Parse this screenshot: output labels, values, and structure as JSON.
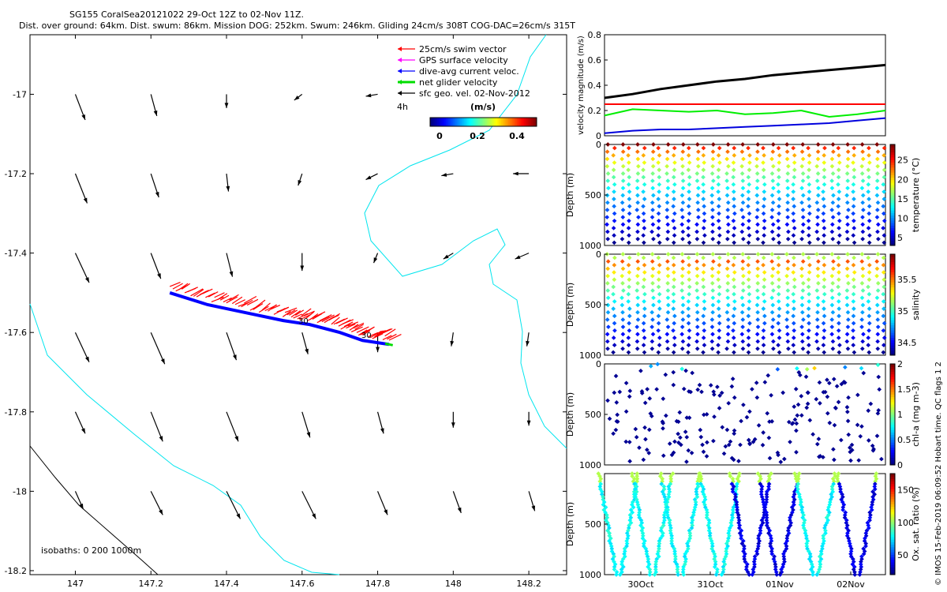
{
  "header": {
    "line1": "SG155 CoralSea20121022 29-Oct 12Z to 02-Nov 11Z.",
    "line2": "Dist. over ground: 64km. Dist. swum: 86km. Mission DOG: 252km. Swum: 246km. Gliding 24cm/s 308T COG-DAC=26cm/s 315T"
  },
  "footer": {
    "credit": "© IMOS 15-Feb-2019 06:09:52 Hobart time. QC flags 1  2"
  },
  "map": {
    "legend": {
      "items": [
        {
          "label": "25cm/s swim vector",
          "color": "#ff0000"
        },
        {
          "label": "GPS surface velocity",
          "color": "#ff00ff"
        },
        {
          "label": "dive-avg current veloc.",
          "color": "#0000ff"
        },
        {
          "label": "net glider velocity",
          "color": "#00dd00"
        },
        {
          "label": "sfc geo. vel. 02-Nov-2012",
          "color": "#000000"
        }
      ],
      "interval_label": "4h",
      "unit_label": "(m/s)",
      "colorbar_ticks": [
        "0",
        "0.2",
        "0.4"
      ]
    },
    "isobaths_label": "isobaths: 0   200  1000m",
    "track_labels": [
      "30",
      "30"
    ],
    "coast_color": "#00e5ee"
  },
  "chart_data": [
    {
      "type": "scatter",
      "name": "map",
      "xlabel": "",
      "ylabel": "",
      "x_ticks": [
        "147",
        "147.2",
        "147.4",
        "147.6",
        "147.8",
        "148",
        "148.2"
      ],
      "y_ticks": [
        "-17",
        "-17.2",
        "-17.4",
        "-17.6",
        "-17.8",
        "-18",
        "-18.2"
      ],
      "xlim": [
        146.88,
        148.3
      ],
      "ylim": [
        -18.21,
        -16.85
      ],
      "track": {
        "lon": [
          147.25,
          147.35,
          147.45,
          147.55,
          147.62,
          147.7,
          147.76,
          147.83
        ],
        "lat": [
          -17.5,
          -17.53,
          -17.55,
          -17.57,
          -17.58,
          -17.6,
          -17.62,
          -17.63
        ]
      },
      "current_grid": {
        "lon": [
          147.0,
          147.2,
          147.4,
          147.6,
          147.8,
          148.0,
          148.2
        ],
        "lat": [
          -17.0,
          -17.2,
          -17.4,
          -17.6,
          -17.8,
          -18.0
        ],
        "u": [
          [
            0.05,
            0.03,
            0.0,
            -0.04,
            -0.06,
            0,
            0
          ],
          [
            0.06,
            0.04,
            0.01,
            -0.02,
            -0.06,
            -0.06,
            -0.08
          ],
          [
            0.07,
            0.05,
            0.03,
            0.0,
            -0.02,
            -0.05,
            -0.07
          ],
          [
            0.07,
            0.07,
            0.05,
            0.03,
            0.0,
            -0.01,
            -0.01
          ],
          [
            0.05,
            0.06,
            0.06,
            0.04,
            0.03,
            0.0,
            0.0
          ],
          [
            0.04,
            0.06,
            0.07,
            0.07,
            0.05,
            0.04,
            0.03
          ]
        ],
        "v": [
          [
            -0.13,
            -0.11,
            -0.07,
            -0.03,
            -0.01,
            0,
            0
          ],
          [
            -0.15,
            -0.12,
            -0.09,
            -0.06,
            -0.03,
            -0.01,
            0.0
          ],
          [
            -0.15,
            -0.13,
            -0.12,
            -0.09,
            -0.05,
            -0.03,
            -0.03
          ],
          [
            -0.15,
            -0.16,
            -0.14,
            -0.11,
            -0.1,
            -0.07,
            -0.07
          ],
          [
            -0.11,
            -0.15,
            -0.15,
            -0.13,
            -0.11,
            -0.08,
            -0.07
          ],
          [
            -0.09,
            -0.12,
            -0.14,
            -0.14,
            -0.12,
            -0.11,
            -0.1
          ]
        ]
      }
    },
    {
      "type": "line",
      "name": "velocity",
      "ylabel": "velocity magnitude (m/s)",
      "ylim": [
        0,
        0.8
      ],
      "y_ticks": [
        "0",
        "0.2",
        "0.4",
        "0.6",
        "0.8"
      ],
      "x": [
        0,
        0.1,
        0.2,
        0.3,
        0.4,
        0.5,
        0.6,
        0.7,
        0.8,
        0.9,
        1.0
      ],
      "series": [
        {
          "color": "#000000",
          "values": [
            0.3,
            0.33,
            0.37,
            0.4,
            0.43,
            0.45,
            0.48,
            0.5,
            0.52,
            0.54,
            0.56
          ]
        },
        {
          "color": "#ff0000",
          "values": [
            0.25,
            0.25,
            0.25,
            0.25,
            0.25,
            0.25,
            0.25,
            0.25,
            0.25,
            0.25,
            0.25
          ]
        },
        {
          "color": "#00ee00",
          "values": [
            0.16,
            0.21,
            0.2,
            0.19,
            0.2,
            0.17,
            0.18,
            0.2,
            0.15,
            0.17,
            0.2
          ]
        },
        {
          "color": "#0000dd",
          "values": [
            0.02,
            0.04,
            0.05,
            0.05,
            0.06,
            0.07,
            0.08,
            0.09,
            0.1,
            0.12,
            0.14
          ]
        }
      ]
    },
    {
      "type": "scatter",
      "name": "temperature",
      "ylabel": "Depth (m)",
      "colorbar_label": "temperature (°C)",
      "colorbar_ticks": [
        "5",
        "10",
        "15",
        "20",
        "25"
      ],
      "colorbar_range": [
        3,
        29
      ],
      "y_ticks": [
        "0",
        "500",
        "1000"
      ],
      "ylim": [
        0,
        1000
      ]
    },
    {
      "type": "scatter",
      "name": "salinity",
      "ylabel": "Depth (m)",
      "colorbar_label": "salinity",
      "colorbar_ticks": [
        "34.5",
        "35",
        "35.5"
      ],
      "colorbar_range": [
        34.3,
        35.9
      ],
      "y_ticks": [
        "0",
        "500",
        "1000"
      ],
      "ylim": [
        0,
        1000
      ]
    },
    {
      "type": "scatter",
      "name": "chla",
      "ylabel": "Depth (m)",
      "colorbar_label": "chl-a (mg m-3)",
      "colorbar_ticks": [
        "0",
        "0.5",
        "1",
        "1.5",
        "2"
      ],
      "colorbar_range": [
        0,
        2
      ],
      "y_ticks": [
        "0",
        "500",
        "1000"
      ],
      "ylim": [
        0,
        1000
      ]
    },
    {
      "type": "scatter",
      "name": "oxygen",
      "ylabel": "Depth (m)",
      "colorbar_label": "Ox. sat. ratio (%)",
      "colorbar_ticks": [
        "50",
        "100",
        "150"
      ],
      "colorbar_range": [
        20,
        175
      ],
      "y_ticks": [
        "500",
        "1000"
      ],
      "ylim": [
        0,
        1000
      ],
      "x_ticks": [
        "30Oct",
        "31Oct",
        "01Nov",
        "02Nov"
      ]
    }
  ]
}
